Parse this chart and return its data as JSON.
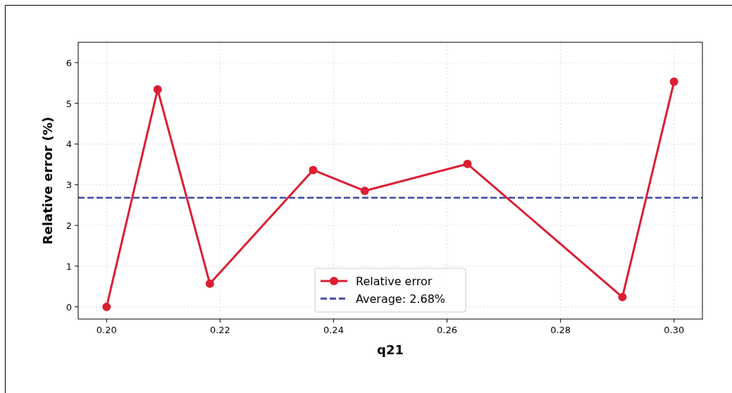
{
  "chart_data": {
    "type": "line",
    "xlabel": "q21",
    "ylabel": "Relative error (%)",
    "x": [
      0.2,
      0.209,
      0.2182,
      0.2364,
      0.2455,
      0.2636,
      0.2909,
      0.3
    ],
    "series": [
      {
        "name": "Relative error",
        "color": "#dc1f32",
        "values": [
          0,
          5.34,
          0.57,
          3.36,
          2.85,
          3.51,
          0.24,
          5.53
        ]
      }
    ],
    "ref_lines": [
      {
        "axis": "y",
        "value": 2.68,
        "label": "Average: 2.68%",
        "color": "#3f48a8",
        "line_style": "dashed"
      }
    ],
    "xlim": [
      0.195,
      0.305
    ],
    "ylim": [
      -0.3,
      6.5
    ],
    "xticks": [
      {
        "value": 0.2,
        "label": "0.20"
      },
      {
        "value": 0.22,
        "label": "0.22"
      },
      {
        "value": 0.24,
        "label": "0.24"
      },
      {
        "value": 0.26,
        "label": "0.26"
      },
      {
        "value": 0.28,
        "label": "0.28"
      },
      {
        "value": 0.3,
        "label": "0.30"
      }
    ],
    "yticks": [
      0,
      1,
      2,
      3,
      4,
      5,
      6
    ],
    "grid": true,
    "legend": "bottom",
    "marker": "circle",
    "line_style": "solid"
  }
}
